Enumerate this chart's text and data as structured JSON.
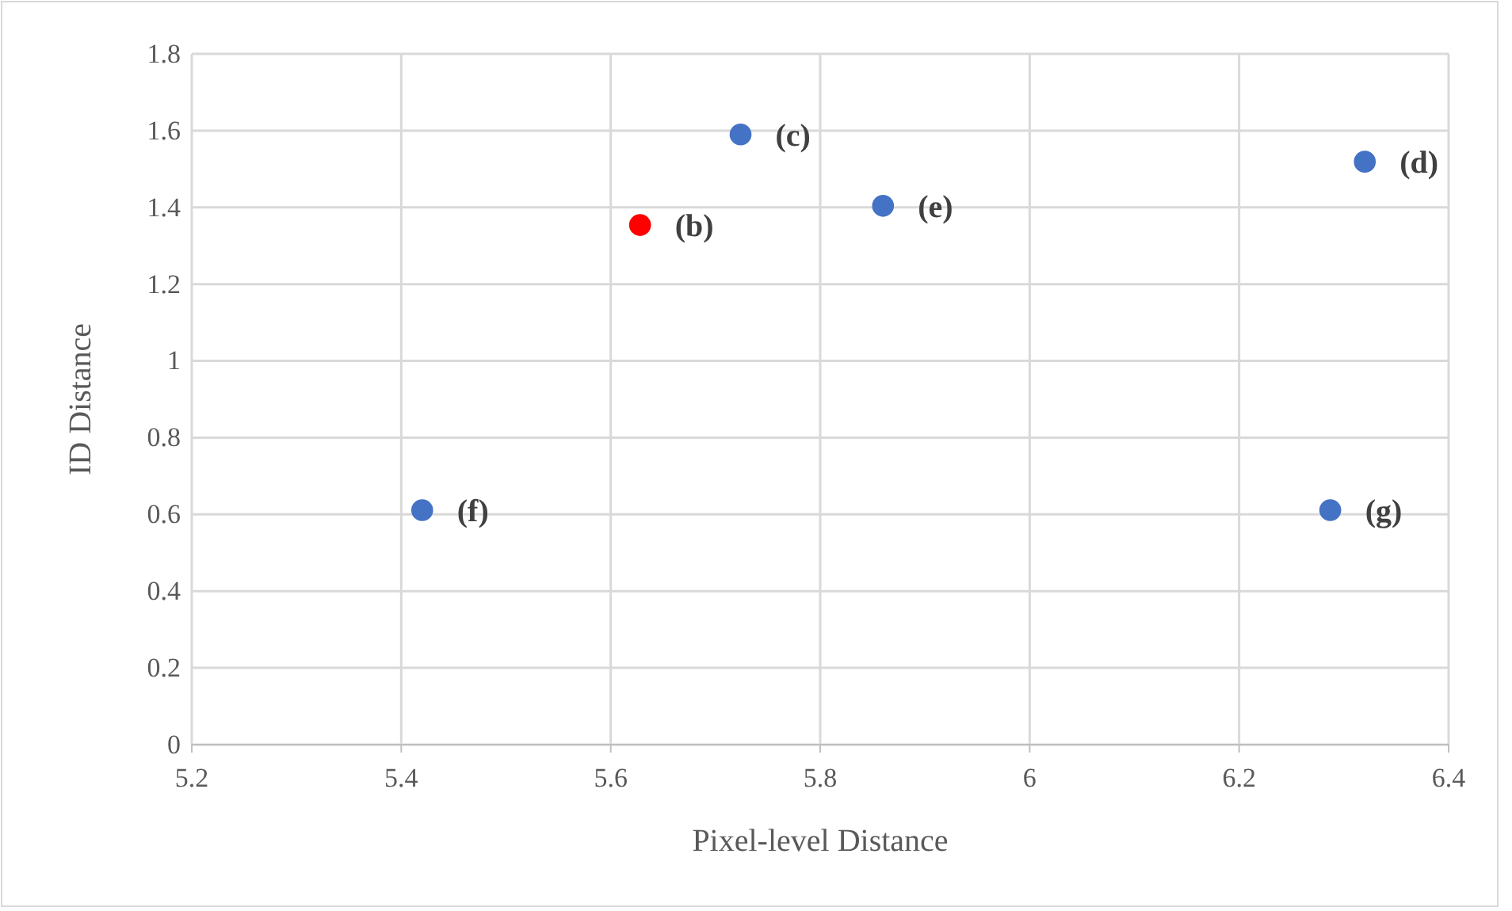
{
  "chart_data": {
    "type": "scatter",
    "xlabel": "Pixel-level Distance",
    "ylabel": "ID Distance",
    "x": [
      5.628,
      5.724,
      6.32,
      5.86,
      5.42,
      6.287
    ],
    "values": [
      1.354,
      1.59,
      1.519,
      1.404,
      0.611,
      0.611
    ],
    "colors": [
      "#ff0000",
      "#4472c4",
      "#4472c4",
      "#4472c4",
      "#4472c4",
      "#4472c4"
    ],
    "xlim": [
      5.2,
      6.4
    ],
    "xticks": [
      5.2,
      5.4,
      5.6,
      5.8,
      6,
      6.2,
      6.4
    ],
    "ylim": [
      0,
      1.8
    ],
    "yticks": [
      0,
      0.2,
      0.4,
      0.6,
      0.8,
      1,
      1.2,
      1.4,
      1.6,
      1.8
    ],
    "grid": true,
    "marker": "circle",
    "annotations": [
      {
        "text": "(b)",
        "x": 5.628,
        "y": 1.354
      },
      {
        "text": "(c)",
        "x": 5.724,
        "y": 1.59
      },
      {
        "text": "(d)",
        "x": 6.32,
        "y": 1.519
      },
      {
        "text": "(e)",
        "x": 5.86,
        "y": 1.404
      },
      {
        "text": "(f)",
        "x": 5.42,
        "y": 0.611
      },
      {
        "text": "(g)",
        "x": 6.287,
        "y": 0.611
      }
    ]
  }
}
